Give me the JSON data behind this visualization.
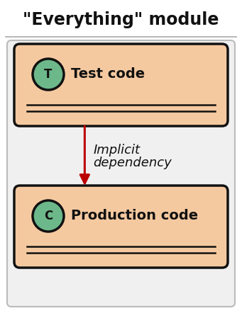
{
  "title": "\"Everything\" module",
  "title_fontsize": 17,
  "bg_color": "#ffffff",
  "outer_fill": "#ffffff",
  "outer_edge": "#111111",
  "inner_fill": "#f0f0f0",
  "box_fill": "#f5c9a0",
  "box_fill2": "#f7d4b0",
  "box_edge": "#111111",
  "circle_fill": "#6db88a",
  "circle_edge": "#111111",
  "arrow_color": "#bb0000",
  "label_test": "Test code",
  "label_prod": "Production code",
  "circle_label_test": "T",
  "circle_label_prod": "C",
  "arrow_label_line1": "Implicit",
  "arrow_label_line2": "dependency",
  "label_fontsize": 14,
  "circle_fontsize": 12,
  "arrow_label_fontsize": 13,
  "fig_w": 3.41,
  "fig_h": 4.49,
  "dpi": 100
}
